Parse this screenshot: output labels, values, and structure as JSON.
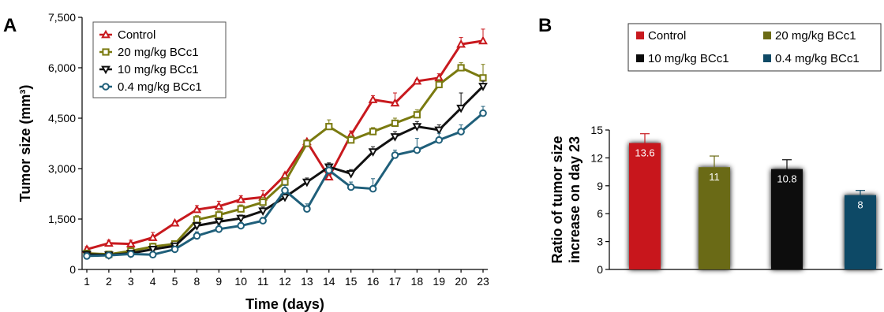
{
  "chart_data": [
    {
      "panel": "A",
      "type": "line",
      "xlabel": "Time (days)",
      "ylabel": "Tumor size (mm³)",
      "ylim": [
        0,
        7500
      ],
      "yticks": [
        "0",
        "1,500",
        "3,000",
        "4,500",
        "6,000",
        "7,500"
      ],
      "ytick_values": [
        0,
        1500,
        3000,
        4500,
        6000,
        7500
      ],
      "categories": [
        "1",
        "2",
        "3",
        "4",
        "5",
        "8",
        "9",
        "10",
        "11",
        "12",
        "13",
        "14",
        "15",
        "16",
        "17",
        "18",
        "19",
        "20",
        "23"
      ],
      "legend_position": "top-left",
      "series": [
        {
          "name": "Control",
          "color": "#c8191e",
          "marker": "triangle-up",
          "values": [
            600,
            780,
            760,
            950,
            1380,
            1780,
            1880,
            2080,
            2150,
            2800,
            3800,
            2750,
            4000,
            5050,
            4950,
            5600,
            5700,
            6700,
            6800
          ],
          "errors": [
            80,
            90,
            110,
            150,
            60,
            120,
            150,
            110,
            200,
            60,
            60,
            60,
            120,
            120,
            300,
            60,
            120,
            200,
            350
          ]
        },
        {
          "name": "20 mg/kg BCc1",
          "color": "#7a7a10",
          "marker": "square",
          "values": [
            480,
            450,
            550,
            680,
            760,
            1480,
            1620,
            1800,
            2000,
            2600,
            3750,
            4250,
            3850,
            4100,
            4350,
            4600,
            5500,
            6000,
            5700
          ],
          "errors": [
            60,
            60,
            80,
            100,
            80,
            120,
            120,
            120,
            140,
            120,
            100,
            200,
            120,
            120,
            150,
            150,
            150,
            150,
            400
          ]
        },
        {
          "name": "10 mg/kg BCc1",
          "color": "#111111",
          "marker": "triangle-down",
          "values": [
            450,
            430,
            480,
            600,
            700,
            1300,
            1420,
            1520,
            1740,
            2150,
            2600,
            3050,
            2850,
            3500,
            3950,
            4250,
            4150,
            4800,
            5450
          ],
          "errors": [
            60,
            60,
            60,
            80,
            80,
            100,
            100,
            100,
            120,
            120,
            120,
            120,
            120,
            150,
            150,
            150,
            150,
            450,
            150
          ]
        },
        {
          "name": "0.4 mg/kg BCc1",
          "color": "#1f5f7a",
          "marker": "circle",
          "values": [
            400,
            420,
            460,
            440,
            600,
            1000,
            1200,
            1300,
            1450,
            2350,
            1800,
            2950,
            2450,
            2400,
            3400,
            3550,
            3850,
            4100,
            4650
          ],
          "errors": [
            40,
            40,
            40,
            50,
            60,
            120,
            120,
            100,
            100,
            150,
            150,
            150,
            150,
            300,
            150,
            350,
            200,
            200,
            200
          ]
        }
      ]
    },
    {
      "panel": "B",
      "type": "bar",
      "ylabel_lines": [
        "Ratio of tumor size",
        "increase on day 23"
      ],
      "ylim": [
        0,
        15
      ],
      "yticks": [
        "0",
        "3",
        "6",
        "9",
        "12",
        "15"
      ],
      "ytick_values": [
        0,
        3,
        6,
        9,
        12,
        15
      ],
      "categories": [
        "Control",
        "20 mg/kg BCc1",
        "10 mg/kg BCc1",
        "0.4 mg/kg BCc1"
      ],
      "values": [
        13.6,
        11,
        10.8,
        8
      ],
      "value_labels": [
        "13.6",
        "11",
        "10.8",
        "8"
      ],
      "errors": [
        1.0,
        1.2,
        1.0,
        0.5
      ],
      "colors": [
        "#c8191e",
        "#6b6a14",
        "#0a0a0a",
        "#0f4a66"
      ],
      "legend_position": "top",
      "legend_order": [
        0,
        1,
        2,
        3
      ]
    }
  ]
}
